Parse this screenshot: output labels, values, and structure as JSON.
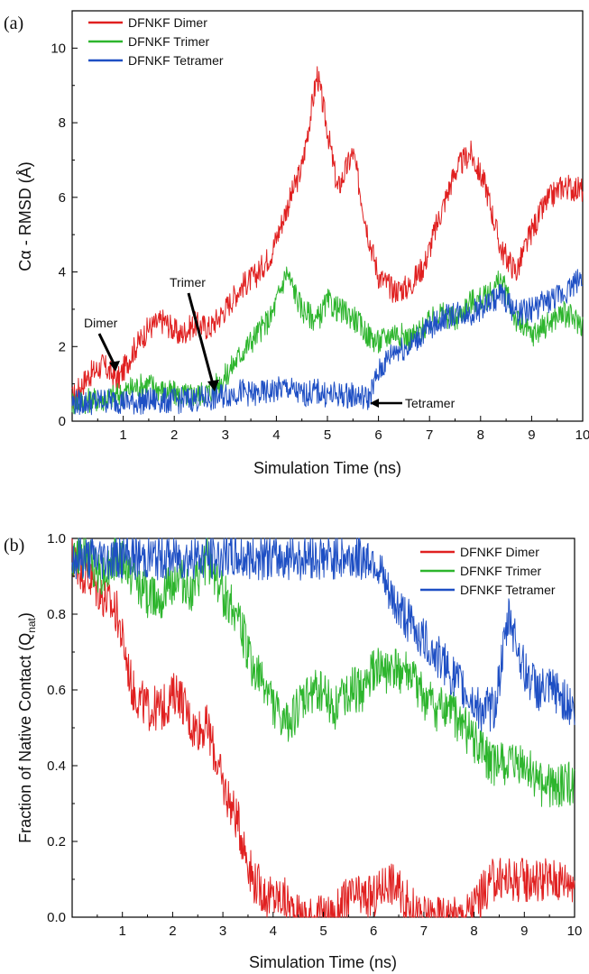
{
  "chart_data": [
    {
      "panel": "(a)",
      "type": "line",
      "xlabel": "Simulation Time (ns)",
      "ylabel": "Cα - RMSD (Å)",
      "xlim": [
        0,
        10
      ],
      "ylim": [
        0,
        11
      ],
      "xticks": [
        "1",
        "2",
        "3",
        "4",
        "5",
        "6",
        "7",
        "8",
        "9",
        "10"
      ],
      "yticks": [
        "0",
        "2",
        "4",
        "6",
        "8",
        "10"
      ],
      "legend_position": "top-left",
      "annotations": [
        "Dimer",
        "Trimer",
        "Tetramer"
      ],
      "series": [
        {
          "name": "DFNKF Dimer",
          "color": "#e02020",
          "x": [
            0,
            0.3,
            0.6,
            0.9,
            1.2,
            1.5,
            1.8,
            2.1,
            2.4,
            2.7,
            3.0,
            3.3,
            3.6,
            3.9,
            4.2,
            4.5,
            4.8,
            5.0,
            5.2,
            5.5,
            5.8,
            6.0,
            6.3,
            6.6,
            6.9,
            7.2,
            7.5,
            7.8,
            8.1,
            8.4,
            8.7,
            9.0,
            9.3,
            9.6,
            10.0
          ],
          "y": [
            0.6,
            1.2,
            1.5,
            1.1,
            1.9,
            2.5,
            2.7,
            2.3,
            2.6,
            2.5,
            3.0,
            3.6,
            3.9,
            4.5,
            5.7,
            6.8,
            9.3,
            7.8,
            6.2,
            7.2,
            5.0,
            3.9,
            3.5,
            3.6,
            4.2,
            5.5,
            6.7,
            7.2,
            6.3,
            4.6,
            4.0,
            5.1,
            5.9,
            6.3,
            6.2
          ]
        },
        {
          "name": "DFNKF Trimer",
          "color": "#2db52d",
          "x": [
            0,
            0.3,
            0.6,
            0.9,
            1.2,
            1.5,
            1.8,
            2.1,
            2.4,
            2.7,
            3.0,
            3.3,
            3.6,
            3.9,
            4.2,
            4.5,
            4.8,
            5.0,
            5.2,
            5.5,
            5.8,
            6.0,
            6.3,
            6.6,
            6.9,
            7.2,
            7.5,
            7.8,
            8.1,
            8.4,
            8.7,
            9.0,
            9.3,
            9.6,
            10.0
          ],
          "y": [
            0.5,
            0.55,
            0.6,
            0.7,
            0.9,
            1.0,
            0.8,
            0.7,
            0.7,
            0.8,
            1.2,
            1.8,
            2.3,
            2.8,
            4.0,
            3.0,
            2.7,
            3.2,
            3.0,
            2.8,
            2.3,
            2.1,
            2.4,
            2.2,
            2.5,
            2.9,
            2.7,
            3.2,
            3.3,
            3.8,
            2.7,
            2.3,
            2.6,
            2.9,
            2.6
          ]
        },
        {
          "name": "DFNKF Tetramer",
          "color": "#1e4fc4",
          "x": [
            0,
            0.3,
            0.6,
            0.9,
            1.2,
            1.5,
            1.8,
            2.1,
            2.4,
            2.7,
            3.0,
            3.3,
            3.6,
            3.9,
            4.2,
            4.5,
            4.8,
            5.0,
            5.2,
            5.5,
            5.8,
            6.0,
            6.3,
            6.6,
            6.9,
            7.2,
            7.5,
            7.8,
            8.1,
            8.4,
            8.7,
            9.0,
            9.3,
            9.6,
            10.0
          ],
          "y": [
            0.5,
            0.5,
            0.55,
            0.55,
            0.5,
            0.55,
            0.55,
            0.55,
            0.6,
            0.6,
            0.7,
            0.8,
            0.7,
            0.8,
            0.9,
            0.7,
            0.8,
            0.7,
            0.7,
            0.7,
            0.6,
            1.3,
            1.9,
            2.0,
            2.4,
            2.7,
            2.9,
            2.9,
            3.1,
            3.4,
            2.9,
            3.0,
            3.2,
            3.4,
            3.9
          ]
        }
      ]
    },
    {
      "panel": "(b)",
      "type": "line",
      "xlabel": "Simulation Time (ns)",
      "ylabel": "Fraction of Native Contact (Q",
      "ylabel_sub": "nat",
      "ylabel_end": ")",
      "xlim": [
        0,
        10
      ],
      "ylim": [
        0,
        1
      ],
      "xticks": [
        "1",
        "2",
        "3",
        "4",
        "5",
        "6",
        "7",
        "8",
        "9",
        "10"
      ],
      "yticks": [
        "0.0",
        "0.2",
        "0.4",
        "0.6",
        "0.8",
        "1.0"
      ],
      "legend_position": "top-right",
      "series": [
        {
          "name": "DFNKF Dimer",
          "color": "#e02020",
          "x": [
            0,
            0.3,
            0.6,
            0.9,
            1.2,
            1.5,
            1.8,
            2.1,
            2.4,
            2.7,
            3.0,
            3.3,
            3.6,
            3.9,
            4.2,
            4.5,
            4.8,
            5.0,
            5.2,
            5.5,
            5.8,
            6.0,
            6.3,
            6.6,
            6.9,
            7.2,
            7.5,
            7.8,
            8.1,
            8.4,
            8.7,
            9.0,
            9.3,
            9.6,
            10.0
          ],
          "y": [
            0.95,
            0.9,
            0.85,
            0.8,
            0.6,
            0.55,
            0.55,
            0.6,
            0.5,
            0.5,
            0.35,
            0.25,
            0.1,
            0.05,
            0.05,
            0.0,
            0.0,
            0.0,
            0.0,
            0.05,
            0.05,
            0.05,
            0.1,
            0.05,
            0.0,
            0.0,
            0.0,
            0.0,
            0.05,
            0.1,
            0.1,
            0.1,
            0.1,
            0.1,
            0.1
          ]
        },
        {
          "name": "DFNKF Trimer",
          "color": "#2db52d",
          "x": [
            0,
            0.3,
            0.6,
            0.9,
            1.2,
            1.5,
            1.8,
            2.1,
            2.4,
            2.7,
            3.0,
            3.3,
            3.6,
            3.9,
            4.2,
            4.5,
            4.8,
            5.0,
            5.2,
            5.5,
            5.8,
            6.0,
            6.3,
            6.6,
            6.9,
            7.2,
            7.5,
            7.8,
            8.1,
            8.4,
            8.7,
            9.0,
            9.3,
            9.6,
            10.0
          ],
          "y": [
            0.95,
            0.95,
            0.9,
            0.95,
            0.9,
            0.85,
            0.85,
            0.9,
            0.85,
            0.95,
            0.85,
            0.8,
            0.65,
            0.6,
            0.5,
            0.55,
            0.6,
            0.6,
            0.55,
            0.6,
            0.6,
            0.65,
            0.65,
            0.65,
            0.6,
            0.55,
            0.55,
            0.5,
            0.45,
            0.4,
            0.4,
            0.4,
            0.35,
            0.35,
            0.35
          ]
        },
        {
          "name": "DFNKF Tetramer",
          "color": "#1e4fc4",
          "x": [
            0,
            0.3,
            0.6,
            0.9,
            1.2,
            1.5,
            1.8,
            2.1,
            2.4,
            2.7,
            3.0,
            3.3,
            3.6,
            3.9,
            4.2,
            4.5,
            4.8,
            5.0,
            5.2,
            5.5,
            5.8,
            6.0,
            6.3,
            6.6,
            6.9,
            7.2,
            7.5,
            7.8,
            8.1,
            8.4,
            8.7,
            9.0,
            9.3,
            9.6,
            10.0
          ],
          "y": [
            0.95,
            0.95,
            0.95,
            0.95,
            0.95,
            0.95,
            0.95,
            0.95,
            0.95,
            0.95,
            0.95,
            0.95,
            0.95,
            0.95,
            0.95,
            0.95,
            0.95,
            0.95,
            0.95,
            0.95,
            0.95,
            0.95,
            0.85,
            0.8,
            0.75,
            0.7,
            0.65,
            0.6,
            0.55,
            0.55,
            0.8,
            0.65,
            0.6,
            0.6,
            0.55
          ]
        }
      ]
    }
  ]
}
